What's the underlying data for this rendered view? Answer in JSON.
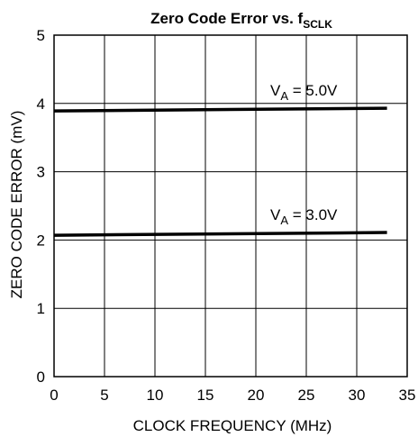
{
  "chart_data": {
    "type": "line",
    "title": "Zero Code Error vs. f",
    "title_subscript": "SCLK",
    "xlabel": "CLOCK FREQUENCY (MHz)",
    "ylabel": "ZERO CODE ERROR (mV)",
    "xlim": [
      0,
      35
    ],
    "ylim": [
      0,
      5
    ],
    "x_ticks": [
      0,
      5,
      10,
      15,
      20,
      25,
      30,
      35
    ],
    "y_ticks": [
      0,
      1,
      2,
      3,
      4,
      5
    ],
    "grid": true,
    "legend": "none",
    "series": [
      {
        "name": "VA = 5.0V",
        "label_main": "V",
        "label_sub": "A",
        "label_rest": " = 5.0V",
        "x": [
          0,
          33
        ],
        "y": [
          3.89,
          3.93
        ]
      },
      {
        "name": "VA = 3.0V",
        "label_main": "V",
        "label_sub": "A",
        "label_rest": " = 3.0V",
        "x": [
          0,
          33
        ],
        "y": [
          2.07,
          2.11
        ]
      }
    ]
  }
}
